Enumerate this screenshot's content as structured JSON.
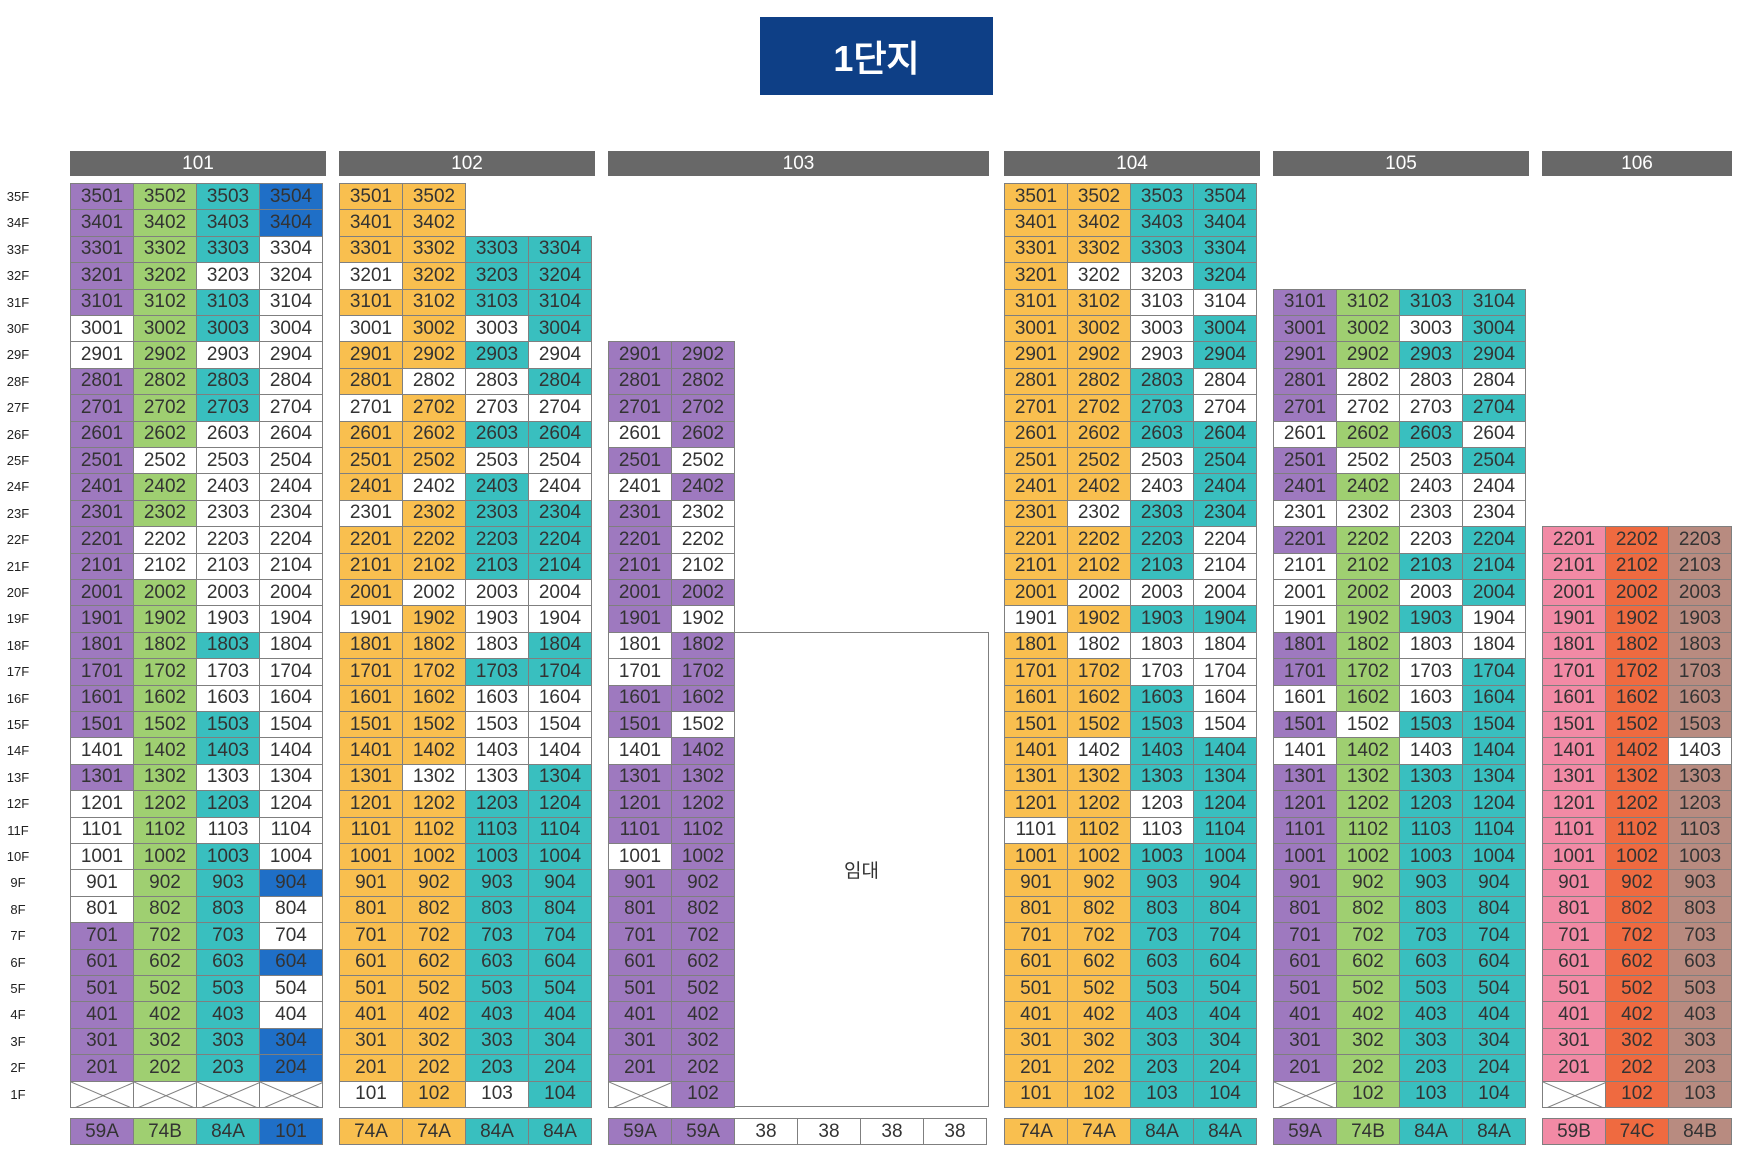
{
  "title": "1단지",
  "colors": {
    "59A": "#9e79bf",
    "74A": "#f9bf4f",
    "74B": "#9fcf71",
    "84A": "#39bfbf",
    "101": "#1f6fc7",
    "59B": "#f28aa5",
    "74C": "#ef6a40",
    "84B": "#b88b80",
    "white": "#ffffff"
  },
  "floors": [
    "35F",
    "34F",
    "33F",
    "32F",
    "31F",
    "30F",
    "29F",
    "28F",
    "27F",
    "26F",
    "25F",
    "24F",
    "23F",
    "22F",
    "21F",
    "20F",
    "19F",
    "18F",
    "17F",
    "16F",
    "15F",
    "14F",
    "13F",
    "12F",
    "11F",
    "10F",
    "9F",
    "8F",
    "7F",
    "6F",
    "5F",
    "4F",
    "3F",
    "2F",
    "1F"
  ],
  "rental_label": "임대",
  "buildings": [
    {
      "name": "101",
      "types": [
        "59A",
        "74B",
        "84A",
        "101"
      ],
      "top": 35,
      "colors": [
        "PGCB",
        "PGCB",
        "PGCW",
        "PGWW",
        "PGCW",
        "WGCW",
        "WGWW",
        "PGCW",
        "PGCW",
        "PGWW",
        "PWWW",
        "PGWW",
        "PGWW",
        "PWWW",
        "PWWW",
        "PGWW",
        "PGWW",
        "PGCW",
        "PGWW",
        "PGWW",
        "PGCW",
        "WGCW",
        "PGWW",
        "WGCW",
        "WGWW",
        "WGCW",
        "WGCB",
        "WGCW",
        "PGCW",
        "PGCB",
        "PGCW",
        "PGCW",
        "PGCB",
        "PGCB",
        "XXXX"
      ]
    },
    {
      "name": "102",
      "types": [
        "74A",
        "74A",
        "84A",
        "84A"
      ],
      "top": 35,
      "colors": [
        "YY",
        "YY",
        "YYCC",
        "WYCC",
        "YYCC",
        "WYWC",
        "YYCW",
        "YWWC",
        "WYWW",
        "YYCC",
        "YYWW",
        "YWCW",
        "WYCC",
        "YYCC",
        "YYCC",
        "YWWW",
        "WYWW",
        "YYWC",
        "YYCC",
        "YYWW",
        "YYWW",
        "YYWW",
        "YWWC",
        "YYCC",
        "YYCC",
        "YYCC",
        "YYCC",
        "YYCC",
        "YYCC",
        "YYCC",
        "YYCC",
        "YYCC",
        "YYCC",
        "YYCC",
        "WYWC"
      ]
    },
    {
      "name": "103",
      "types": [
        "59A",
        "59A",
        "38",
        "38",
        "38",
        "38"
      ],
      "top": 29,
      "colors": [
        "PP",
        "PP",
        "PP",
        "WP",
        "PW",
        "WP",
        "PW",
        "PW",
        "PW",
        "PP",
        "PW",
        "WP",
        "WP",
        "PP",
        "PW",
        "WP",
        "PP",
        "PP",
        "PP",
        "WP",
        "PP",
        "PP",
        "PP",
        "PP",
        "PP",
        "PP",
        "PP",
        "PP",
        "XP"
      ]
    },
    {
      "name": "104",
      "types": [
        "74A",
        "74A",
        "84A",
        "84A"
      ],
      "top": 35,
      "colors": [
        "YYCC",
        "YYCC",
        "YYCC",
        "YWWC",
        "YYWW",
        "YYWC",
        "YYWC",
        "YYCW",
        "YYCW",
        "YYCC",
        "YYWC",
        "YYWC",
        "YWCC",
        "YYCW",
        "YYCW",
        "YWWW",
        "WYCC",
        "YWWW",
        "YYWW",
        "YYCW",
        "YYCW",
        "YWCC",
        "YYCC",
        "YYWC",
        "WYWC",
        "YYCC",
        "YYCC",
        "YYCC",
        "YYCC",
        "YYCC",
        "YYCC",
        "YYCC",
        "YYCC",
        "YYCC",
        "YYCC"
      ]
    },
    {
      "name": "105",
      "types": [
        "59A",
        "74B",
        "84A",
        "84A"
      ],
      "top": 31,
      "colors": [
        "PGCC",
        "PGWC",
        "PGCC",
        "PWWW",
        "PWWC",
        "WGCW",
        "PWWC",
        "PGWW",
        "WWWW",
        "PGWC",
        "WGCC",
        "WGWC",
        "WGCW",
        "PGWW",
        "PGWC",
        "WGWC",
        "PWCC",
        "WGWC",
        "PGCC",
        "PGCC",
        "PGCC",
        "PGCC",
        "PGCC",
        "PGCC",
        "PGCC",
        "PGCC",
        "PGCC",
        "PGCC",
        "PGCC",
        "PGCC",
        "XGCC"
      ]
    },
    {
      "name": "106",
      "types": [
        "59B",
        "74C",
        "84B"
      ],
      "top": 22,
      "colors": [
        "SOB",
        "SOB",
        "SOB",
        "SOB",
        "SOB",
        "SOB",
        "SOB",
        "SOB",
        "SOW",
        "SOB",
        "SOB",
        "SOB",
        "SOB",
        "SOB",
        "SOB",
        "SOB",
        "SOB",
        "SOB",
        "SOB",
        "SOB",
        "SOB",
        "XOB"
      ]
    }
  ]
}
